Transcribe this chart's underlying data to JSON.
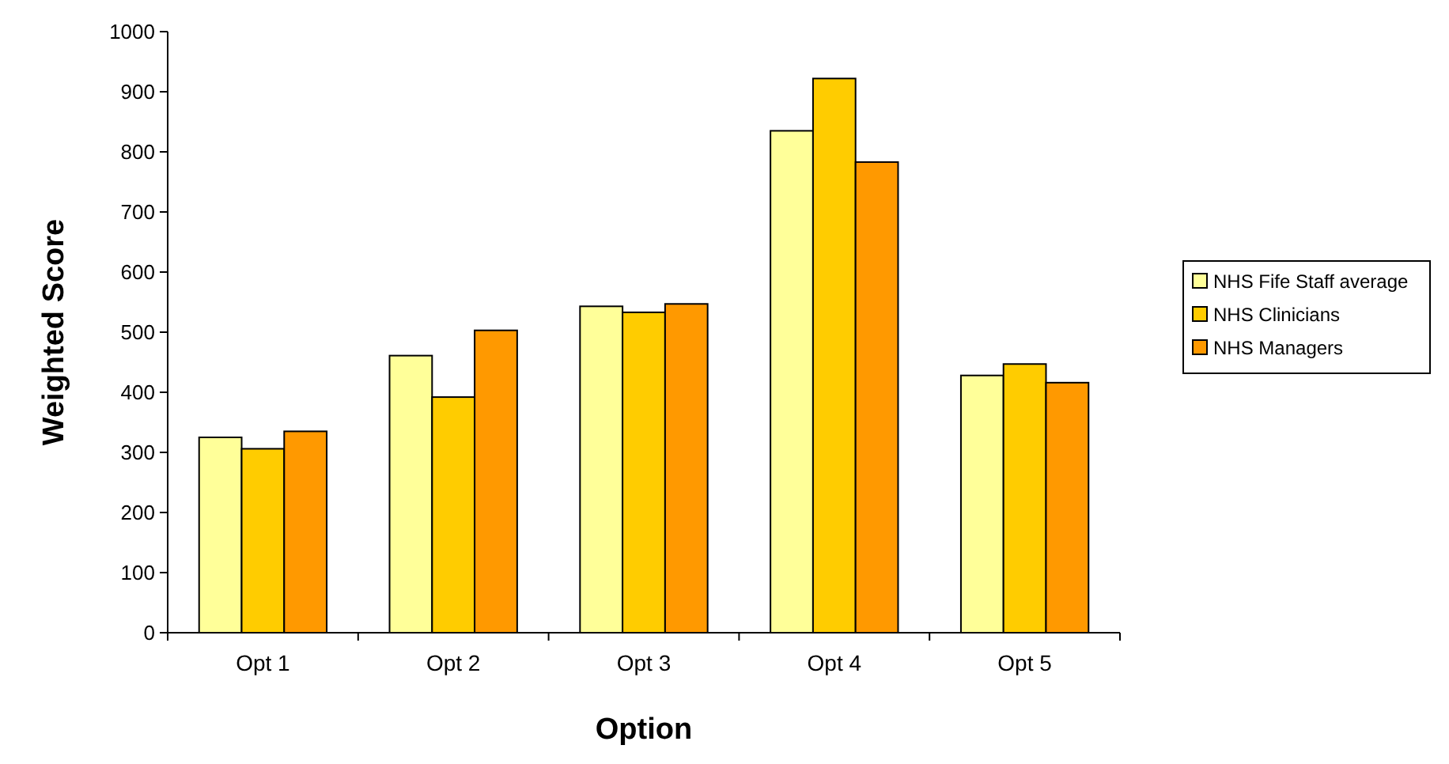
{
  "chart_data": {
    "type": "bar",
    "xlabel": "Option",
    "ylabel": "Weighted Score",
    "categories": [
      "Opt 1",
      "Opt 2",
      "Opt 3",
      "Opt 4",
      "Opt 5"
    ],
    "series": [
      {
        "name": "NHS Fife Staff average",
        "color": "#ffff99",
        "values": [
          325,
          461,
          543,
          835,
          428
        ]
      },
      {
        "name": "NHS Clinicians",
        "color": "#ffcc00",
        "values": [
          306,
          392,
          533,
          922,
          447
        ]
      },
      {
        "name": "NHS Managers",
        "color": "#ff9900",
        "values": [
          335,
          503,
          547,
          783,
          416
        ]
      }
    ],
    "ylim": [
      0,
      1000
    ],
    "yticks": [
      0,
      100,
      200,
      300,
      400,
      500,
      600,
      700,
      800,
      900,
      1000
    ],
    "grid": false,
    "legend": "right"
  }
}
